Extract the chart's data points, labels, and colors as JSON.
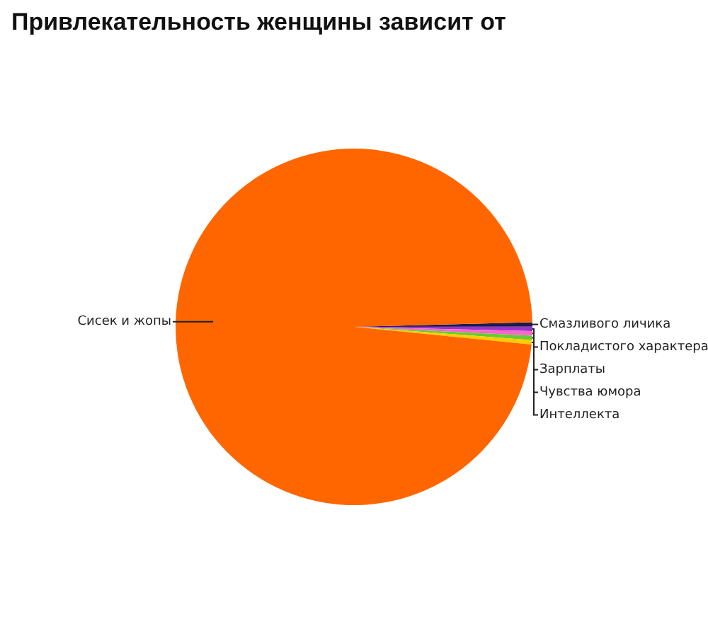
{
  "chart_data": {
    "type": "pie",
    "title": "Привлекательность женщины зависит от",
    "categories": [
      "Смазливого личика",
      "Покладистого характера",
      "Зарплаты",
      "Чувства юмора",
      "Интеллекта",
      "Сисек и жопы"
    ],
    "values": [
      0.4,
      0.4,
      0.4,
      0.4,
      0.4,
      98
    ],
    "colors": [
      "#1a1a4d",
      "#9933cc",
      "#ff66cc",
      "#66cc33",
      "#ffcc00",
      "#ff6600"
    ]
  }
}
